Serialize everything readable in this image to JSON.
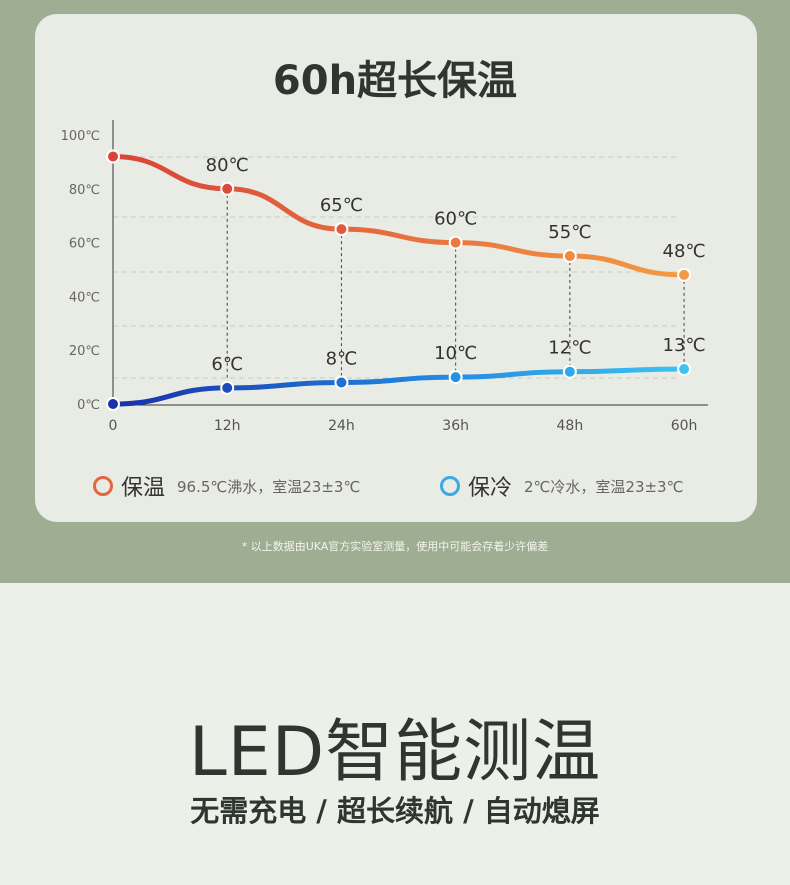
{
  "title": "60h超长保温",
  "colors": {
    "hot_start": "#d94438",
    "hot_end": "#f59a42",
    "cold_start": "#1a2fa8",
    "cold_end": "#3cc3f2"
  },
  "chart_data": {
    "type": "line",
    "title": "60h超长保温",
    "x": [
      0,
      12,
      24,
      36,
      48,
      60
    ],
    "x_tick_labels": [
      "0",
      "12h",
      "24h",
      "36h",
      "48h",
      "60h"
    ],
    "y_tick_labels": [
      "100℃",
      "80℃",
      "60℃",
      "40℃",
      "20℃",
      "0℃"
    ],
    "ylim": [
      0,
      100
    ],
    "series": [
      {
        "name": "保温",
        "values": [
          92,
          80,
          65,
          60,
          55,
          48
        ],
        "labels": [
          "",
          "80℃",
          "65℃",
          "60℃",
          "55℃",
          "48℃"
        ]
      },
      {
        "name": "保冷",
        "values": [
          0,
          6,
          8,
          10,
          12,
          13
        ],
        "labels": [
          "",
          "6℃",
          "8℃",
          "10℃",
          "12℃",
          "13℃"
        ]
      }
    ],
    "legend": [
      {
        "name": "保温",
        "desc": "96.5℃沸水，室温23±3℃"
      },
      {
        "name": "保冷",
        "desc": "2℃冷水，室温23±3℃"
      }
    ]
  },
  "note": "* 以上数据由UKA官方实验室测量，使用中可能会存着少许偏差",
  "headline": "LED智能测温",
  "subline": "无需充电 / 超长续航 / 自动熄屏"
}
